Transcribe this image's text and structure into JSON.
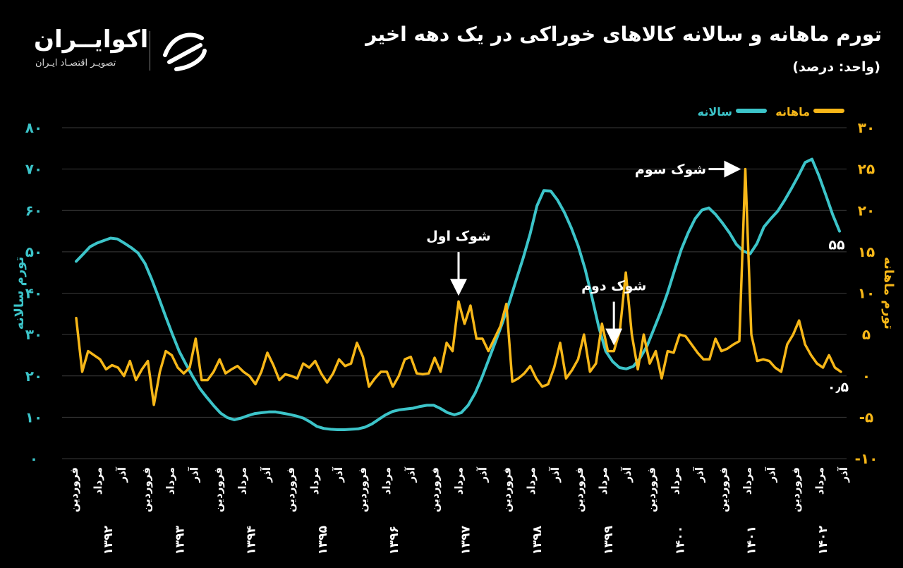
{
  "header": {
    "title": "تورم ماهانه و سالانه کالاهای خوراکی در یک دهه اخیر",
    "unit": "(واحد: درصد)"
  },
  "brand": {
    "name": "اکوایــران",
    "tagline": "تصویـر اقتصـاد ایـران"
  },
  "colors": {
    "annual": "#3cc4c9",
    "monthly": "#f7b718",
    "grid": "#3a3a3a",
    "background": "#000000"
  },
  "chart_data": {
    "type": "line",
    "legend_position": "top",
    "series": [
      {
        "name": "سالانه",
        "axis": "left",
        "axis_title": "تورم سالانه",
        "axis_range": [
          0,
          80
        ],
        "tick_values": [
          0,
          10,
          20,
          30,
          40,
          50,
          60,
          70,
          80
        ],
        "tick_labels": [
          "۰",
          "۱۰",
          "۲۰",
          "۳۰",
          "۴۰",
          "۵۰",
          "۶۰",
          "۷۰",
          "۸۰"
        ],
        "end_label": "۵۵",
        "values": [
          47.7,
          49.4,
          51.2,
          52.1,
          52.7,
          53.3,
          53.1,
          52.1,
          51.0,
          49.7,
          47.2,
          43.3,
          38.9,
          34.4,
          30.0,
          25.9,
          22.7,
          19.7,
          16.9,
          14.8,
          12.8,
          11.0,
          9.9,
          9.4,
          9.8,
          10.4,
          10.9,
          11.1,
          11.3,
          11.3,
          11.0,
          10.7,
          10.3,
          9.8,
          8.9,
          7.8,
          7.3,
          7.1,
          7.0,
          7.0,
          7.1,
          7.2,
          7.6,
          8.4,
          9.5,
          10.6,
          11.4,
          11.8,
          12.0,
          12.2,
          12.6,
          12.9,
          12.9,
          12.1,
          11.1,
          10.6,
          11.1,
          12.9,
          15.8,
          19.6,
          24.0,
          28.4,
          32.9,
          37.9,
          43.3,
          48.5,
          54.3,
          61.1,
          64.8,
          64.7,
          62.5,
          59.5,
          55.8,
          51.4,
          45.9,
          39.0,
          31.8,
          26.0,
          23.5,
          22.0,
          21.7,
          22.3,
          24.3,
          27.2,
          31.3,
          35.5,
          40.1,
          45.5,
          50.6,
          54.6,
          58.0,
          60.1,
          60.6,
          59.0,
          56.9,
          54.6,
          51.8,
          50.2,
          49.5,
          52.0,
          56.0,
          58.0,
          59.8,
          62.4,
          65.3,
          68.3,
          71.6,
          72.4,
          68.4,
          63.8,
          59.0,
          55.0
        ]
      },
      {
        "name": "ماهانه",
        "axis": "right",
        "axis_title": "تورم ماهانه",
        "axis_range": [
          -10,
          30
        ],
        "tick_values": [
          -10,
          -5,
          0,
          5,
          10,
          15,
          20,
          25,
          30
        ],
        "tick_labels": [
          "-۱۰",
          "-۵",
          "۰",
          "۵",
          "۱۰",
          "۱۵",
          "۲۰",
          "۲۵",
          "۳۰"
        ],
        "end_label": "۰٫۵",
        "values": [
          7.0,
          0.5,
          3.0,
          2.5,
          2.0,
          0.8,
          1.3,
          1.0,
          0.0,
          1.8,
          -0.5,
          0.8,
          1.8,
          -3.5,
          0.5,
          3.0,
          2.5,
          1.0,
          0.3,
          1.0,
          4.5,
          -0.5,
          -0.5,
          0.5,
          2.0,
          0.3,
          0.8,
          1.2,
          0.5,
          0.0,
          -1.0,
          0.5,
          2.8,
          1.3,
          -0.5,
          0.2,
          0.0,
          -0.3,
          1.5,
          1.0,
          1.8,
          0.3,
          -0.8,
          0.3,
          2.0,
          1.2,
          1.5,
          4.0,
          2.3,
          -1.3,
          -0.3,
          0.5,
          0.5,
          -1.3,
          0.0,
          2.0,
          2.3,
          0.3,
          0.2,
          0.3,
          2.2,
          0.5,
          4.0,
          3.0,
          9.0,
          6.3,
          8.5,
          4.5,
          4.5,
          3.0,
          4.5,
          6.0,
          8.7,
          -0.7,
          -0.3,
          0.3,
          1.2,
          -0.3,
          -1.3,
          -1.0,
          1.0,
          4.0,
          -0.3,
          0.7,
          2.0,
          5.0,
          0.5,
          1.5,
          6.3,
          3.0,
          3.0,
          5.5,
          12.5,
          5.0,
          0.8,
          5.0,
          1.5,
          3.0,
          -0.3,
          3.0,
          2.8,
          5.0,
          4.8,
          3.8,
          2.8,
          2.0,
          2.0,
          4.5,
          3.0,
          3.3,
          3.8,
          4.2,
          25.0,
          5.0,
          1.8,
          2.0,
          1.8,
          1.0,
          0.5,
          3.8,
          5.0,
          6.7,
          3.8,
          2.5,
          1.5,
          1.0,
          2.5,
          1.0,
          0.5
        ]
      }
    ],
    "x_label_rows": {
      "month_labels": [
        "فروردین",
        "مرداد",
        "آذر"
      ],
      "year_labels": [
        "۱۳۹۲",
        "۱۳۹۳",
        "۱۳۹۴",
        "۱۳۹۵",
        "۱۳۹۶",
        "۱۳۹۷",
        "۱۳۹۸",
        "۱۳۹۹",
        "۱۴۰۰",
        "۱۴۰۱",
        "۱۴۰۲"
      ]
    },
    "annotations": [
      {
        "text": "شوک اول",
        "series": "ماهانه",
        "index": 64,
        "arrow": "down"
      },
      {
        "text": "شوک دوم",
        "series": "ماهانه",
        "index": 90,
        "arrow": "down"
      },
      {
        "text": "شوک سوم",
        "series": "ماهانه",
        "index": 112,
        "arrow": "right"
      }
    ]
  }
}
